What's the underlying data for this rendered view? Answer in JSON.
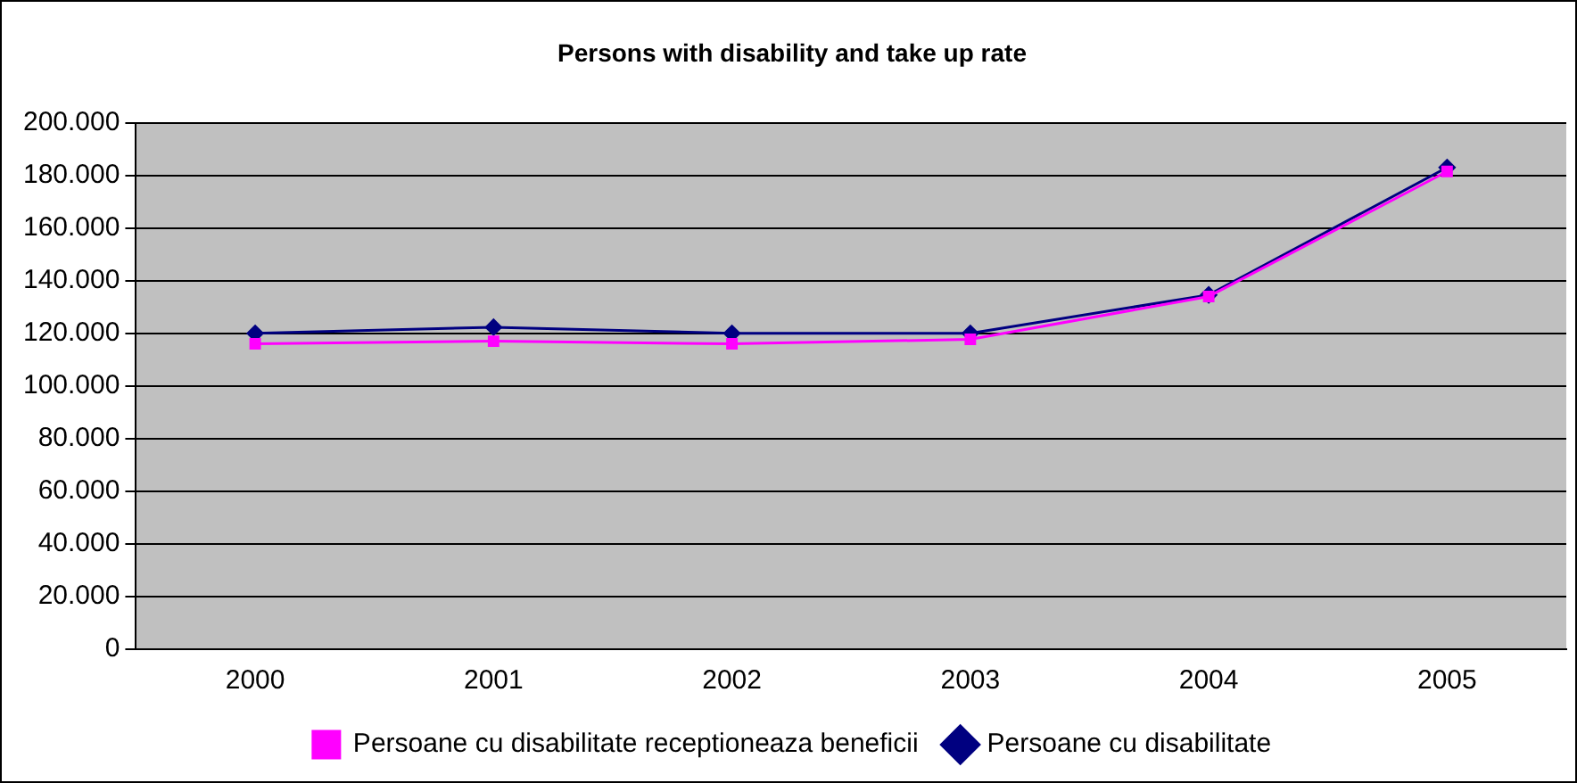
{
  "chart_data": {
    "type": "line",
    "title": "Persons with disability and take up rate",
    "categories": [
      "2000",
      "2001",
      "2002",
      "2003",
      "2004",
      "2005"
    ],
    "series": [
      {
        "name": "Persoane cu disabilitate",
        "color": "#000080",
        "marker": "diamond",
        "values": [
          120000,
          122300,
          120000,
          120000,
          134600,
          183000
        ]
      },
      {
        "name": "Persoane cu disabilitate receptioneaza beneficii",
        "color": "#ff00ff",
        "marker": "square",
        "values": [
          116000,
          117000,
          116000,
          117700,
          134000,
          181500
        ]
      }
    ],
    "ylim": [
      0,
      200000
    ],
    "yticks": [
      {
        "value": 0,
        "label": "0"
      },
      {
        "value": 20000,
        "label": "20.000"
      },
      {
        "value": 40000,
        "label": "40.000"
      },
      {
        "value": 60000,
        "label": "60.000"
      },
      {
        "value": 80000,
        "label": "80.000"
      },
      {
        "value": 100000,
        "label": "100.000"
      },
      {
        "value": 120000,
        "label": "120.000"
      },
      {
        "value": 140000,
        "label": "140.000"
      },
      {
        "value": 160000,
        "label": "160.000"
      },
      {
        "value": 180000,
        "label": "180.000"
      },
      {
        "value": 200000,
        "label": "200.000"
      }
    ],
    "grid": "y",
    "legend": "bottom",
    "line_style": "solid"
  }
}
